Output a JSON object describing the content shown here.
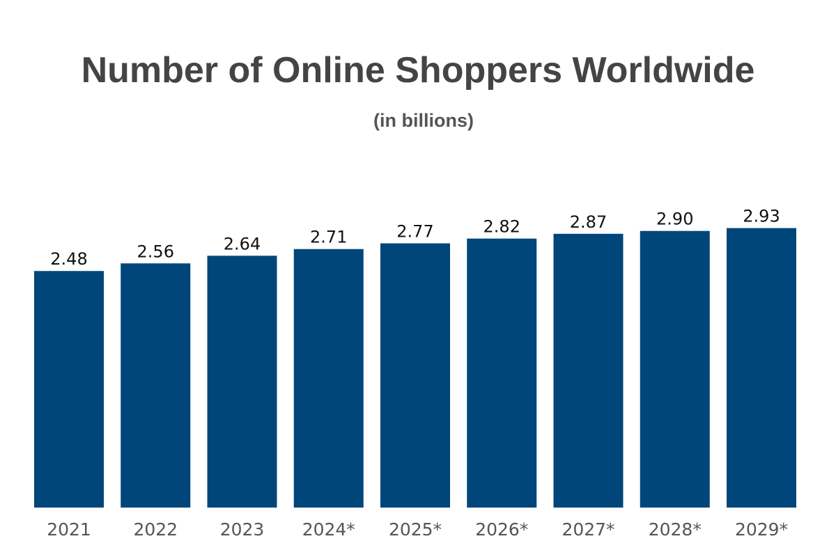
{
  "chart_data": {
    "type": "bar",
    "title": "Number of Online Shoppers Worldwide",
    "subtitle": "(in billions)",
    "xlabel": "",
    "ylabel": "",
    "categories": [
      "2021",
      "2022",
      "2023",
      "2024*",
      "2025*",
      "2026*",
      "2027*",
      "2028*",
      "2029*"
    ],
    "values": [
      2.48,
      2.56,
      2.64,
      2.71,
      2.77,
      2.82,
      2.87,
      2.9,
      2.93
    ],
    "value_labels": [
      "2.48",
      "2.56",
      "2.64",
      "2.71",
      "2.77",
      "2.82",
      "2.87",
      "2.90",
      "2.93"
    ],
    "ylim": [
      0,
      3
    ],
    "grid": false,
    "legend": "none",
    "bar_color": "#00467a"
  }
}
